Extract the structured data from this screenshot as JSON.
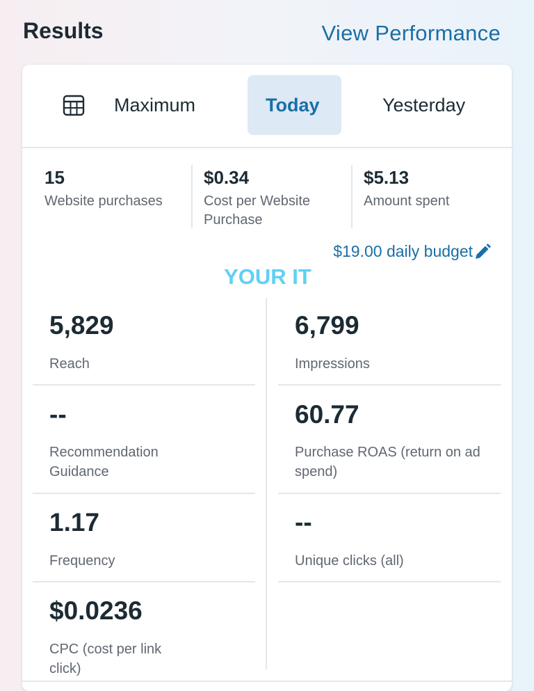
{
  "header": {
    "title": "Results",
    "link": "View Performance"
  },
  "tabs": [
    "Maximum",
    "Today",
    "Yesterday"
  ],
  "summary": [
    {
      "value": "15",
      "label": "Website purchases"
    },
    {
      "value": "$0.34",
      "label": "Cost per Website Purchase"
    },
    {
      "value": "$5.13",
      "label": "Amount spent"
    }
  ],
  "budget": "$19.00 daily budget",
  "watermark": "YOUR IT",
  "metrics": {
    "left": [
      {
        "value": "5,829",
        "label": "Reach"
      },
      {
        "value": "--",
        "label": "Recommendation Guidance"
      },
      {
        "value": "1.17",
        "label": "Frequency"
      },
      {
        "value": "$0.0236",
        "label": "CPC (cost per link click)"
      }
    ],
    "right": [
      {
        "value": "6,799",
        "label": "Impressions"
      },
      {
        "value": "60.77",
        "label": "Purchase ROAS (return on ad spend)"
      },
      {
        "value": "--",
        "label": "Unique clicks (all)"
      }
    ]
  }
}
